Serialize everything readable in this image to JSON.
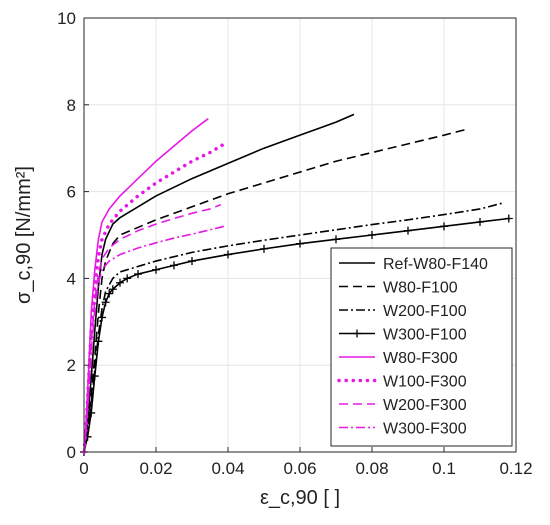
{
  "chart_data": {
    "type": "line",
    "title": "",
    "xlabel": "ε_c,90 [ ]",
    "ylabel": "σ_c,90 [N/mm²]",
    "xlim": [
      0,
      0.12
    ],
    "ylim": [
      0,
      10
    ],
    "xticks": [
      "0",
      "0.02",
      "0.04",
      "0.06",
      "0.08",
      "0.1",
      "0.12"
    ],
    "yticks": [
      "0",
      "2",
      "4",
      "6",
      "8",
      "10"
    ],
    "grid": true,
    "legend_position": "bottom-right",
    "series": [
      {
        "name": "Ref-W80-F140",
        "color": "#000000",
        "style": "solid",
        "points": [
          [
            0,
            0
          ],
          [
            0.001,
            0.7
          ],
          [
            0.002,
            1.7
          ],
          [
            0.003,
            2.8
          ],
          [
            0.004,
            3.8
          ],
          [
            0.005,
            4.55
          ],
          [
            0.006,
            4.9
          ],
          [
            0.008,
            5.25
          ],
          [
            0.01,
            5.4
          ],
          [
            0.015,
            5.65
          ],
          [
            0.02,
            5.9
          ],
          [
            0.03,
            6.3
          ],
          [
            0.04,
            6.65
          ],
          [
            0.05,
            7.0
          ],
          [
            0.06,
            7.3
          ],
          [
            0.07,
            7.6
          ],
          [
            0.075,
            7.78
          ]
        ]
      },
      {
        "name": "W80-F100",
        "color": "#000000",
        "style": "dashed",
        "points": [
          [
            0,
            0
          ],
          [
            0.001,
            0.5
          ],
          [
            0.002,
            1.3
          ],
          [
            0.003,
            2.2
          ],
          [
            0.004,
            3.2
          ],
          [
            0.005,
            4.0
          ],
          [
            0.006,
            4.4
          ],
          [
            0.008,
            4.8
          ],
          [
            0.01,
            5.0
          ],
          [
            0.02,
            5.35
          ],
          [
            0.03,
            5.65
          ],
          [
            0.04,
            5.95
          ],
          [
            0.05,
            6.2
          ],
          [
            0.06,
            6.45
          ],
          [
            0.07,
            6.7
          ],
          [
            0.08,
            6.9
          ],
          [
            0.09,
            7.1
          ],
          [
            0.1,
            7.3
          ],
          [
            0.107,
            7.45
          ]
        ]
      },
      {
        "name": "W200-F100",
        "color": "#000000",
        "style": "dashdot",
        "points": [
          [
            0,
            0
          ],
          [
            0.001,
            0.5
          ],
          [
            0.002,
            1.1
          ],
          [
            0.003,
            1.9
          ],
          [
            0.004,
            2.7
          ],
          [
            0.005,
            3.3
          ],
          [
            0.006,
            3.7
          ],
          [
            0.008,
            4.0
          ],
          [
            0.01,
            4.15
          ],
          [
            0.02,
            4.4
          ],
          [
            0.03,
            4.6
          ],
          [
            0.04,
            4.75
          ],
          [
            0.05,
            4.88
          ],
          [
            0.06,
            5.0
          ],
          [
            0.07,
            5.12
          ],
          [
            0.08,
            5.24
          ],
          [
            0.09,
            5.35
          ],
          [
            0.1,
            5.47
          ],
          [
            0.11,
            5.6
          ],
          [
            0.116,
            5.73
          ]
        ]
      },
      {
        "name": "W300-F100",
        "color": "#000000",
        "style": "solid-plus",
        "points": [
          [
            0,
            0
          ],
          [
            0.001,
            0.35
          ],
          [
            0.002,
            0.9
          ],
          [
            0.003,
            1.75
          ],
          [
            0.004,
            2.55
          ],
          [
            0.005,
            3.1
          ],
          [
            0.006,
            3.45
          ],
          [
            0.007,
            3.65
          ],
          [
            0.008,
            3.75
          ],
          [
            0.01,
            3.9
          ],
          [
            0.012,
            4.0
          ],
          [
            0.015,
            4.1
          ],
          [
            0.02,
            4.2
          ],
          [
            0.025,
            4.3
          ],
          [
            0.03,
            4.4
          ],
          [
            0.04,
            4.55
          ],
          [
            0.05,
            4.68
          ],
          [
            0.06,
            4.8
          ],
          [
            0.07,
            4.9
          ],
          [
            0.08,
            5.0
          ],
          [
            0.09,
            5.1
          ],
          [
            0.1,
            5.2
          ],
          [
            0.11,
            5.3
          ],
          [
            0.118,
            5.38
          ]
        ]
      },
      {
        "name": "W80-F300",
        "color": "#e619e6",
        "style": "solid",
        "points": [
          [
            0,
            0
          ],
          [
            0.0005,
            0.6
          ],
          [
            0.001,
            1.4
          ],
          [
            0.0015,
            2.3
          ],
          [
            0.002,
            3.2
          ],
          [
            0.003,
            4.2
          ],
          [
            0.004,
            4.9
          ],
          [
            0.005,
            5.3
          ],
          [
            0.007,
            5.6
          ],
          [
            0.01,
            5.9
          ],
          [
            0.015,
            6.3
          ],
          [
            0.02,
            6.7
          ],
          [
            0.025,
            7.05
          ],
          [
            0.03,
            7.4
          ],
          [
            0.0345,
            7.68
          ]
        ]
      },
      {
        "name": "W100-F300",
        "color": "#e619e6",
        "style": "dotted",
        "points": [
          [
            0,
            0
          ],
          [
            0.0005,
            0.5
          ],
          [
            0.001,
            1.2
          ],
          [
            0.0015,
            2.0
          ],
          [
            0.002,
            2.8
          ],
          [
            0.003,
            3.8
          ],
          [
            0.004,
            4.5
          ],
          [
            0.005,
            4.9
          ],
          [
            0.007,
            5.25
          ],
          [
            0.01,
            5.55
          ],
          [
            0.015,
            5.9
          ],
          [
            0.02,
            6.2
          ],
          [
            0.025,
            6.45
          ],
          [
            0.03,
            6.7
          ],
          [
            0.035,
            6.9
          ],
          [
            0.039,
            7.1
          ]
        ]
      },
      {
        "name": "W200-F300",
        "color": "#e619e6",
        "style": "dashed",
        "points": [
          [
            0,
            0
          ],
          [
            0.0005,
            0.45
          ],
          [
            0.001,
            1.1
          ],
          [
            0.0015,
            1.8
          ],
          [
            0.002,
            2.5
          ],
          [
            0.003,
            3.5
          ],
          [
            0.004,
            4.1
          ],
          [
            0.005,
            4.45
          ],
          [
            0.007,
            4.7
          ],
          [
            0.01,
            4.9
          ],
          [
            0.015,
            5.1
          ],
          [
            0.02,
            5.25
          ],
          [
            0.025,
            5.38
          ],
          [
            0.03,
            5.5
          ],
          [
            0.035,
            5.6
          ],
          [
            0.038,
            5.7
          ]
        ]
      },
      {
        "name": "W300-F300",
        "color": "#e619e6",
        "style": "dashdot",
        "points": [
          [
            0,
            0
          ],
          [
            0.0005,
            0.4
          ],
          [
            0.001,
            1.0
          ],
          [
            0.0015,
            1.6
          ],
          [
            0.002,
            2.3
          ],
          [
            0.003,
            3.3
          ],
          [
            0.004,
            3.9
          ],
          [
            0.005,
            4.2
          ],
          [
            0.007,
            4.4
          ],
          [
            0.01,
            4.55
          ],
          [
            0.015,
            4.7
          ],
          [
            0.02,
            4.82
          ],
          [
            0.025,
            4.93
          ],
          [
            0.03,
            5.02
          ],
          [
            0.035,
            5.12
          ],
          [
            0.039,
            5.2
          ]
        ]
      }
    ]
  }
}
